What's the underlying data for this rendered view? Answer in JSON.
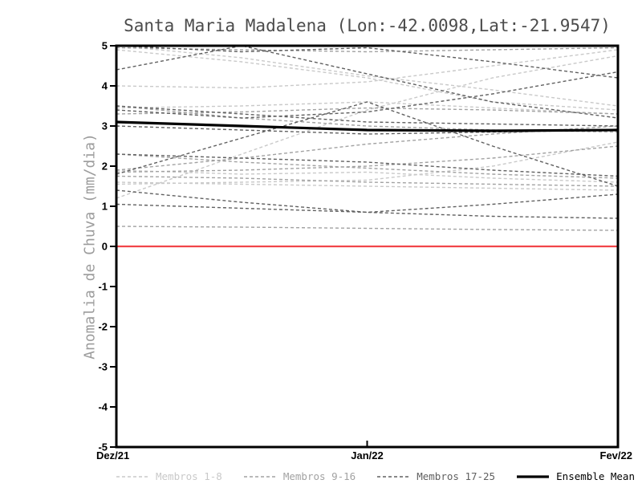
{
  "page": {
    "background": "#ffffff"
  },
  "chart_data": {
    "type": "line",
    "title": "Santa Maria Madalena (Lon:-42.0098,Lat:-21.9547)",
    "ylabel": "Anomalia de Chuva (mm/dia)",
    "xlabel": "",
    "ylim": [
      -5,
      5
    ],
    "yticks": [
      5,
      4,
      3,
      2,
      1,
      0,
      -1,
      -2,
      -3,
      -4,
      -5
    ],
    "x_tick_labels": [
      "Dez/21",
      "Jan/22",
      "Fev/22"
    ],
    "x_positions": [
      0,
      0.25,
      0.5,
      0.75,
      1
    ],
    "grid": false,
    "legend_position": "bottom",
    "zero_line": {
      "value": 0,
      "color": "#f14549"
    },
    "frame_color": "#000000",
    "groups": [
      {
        "name": "Membros 1-8",
        "color": "#c9c9c9",
        "style": "dashed",
        "series": [
          [
            5.0,
            4.7,
            4.25,
            3.9,
            3.5
          ],
          [
            4.0,
            3.95,
            4.1,
            4.5,
            4.9
          ],
          [
            3.45,
            3.5,
            3.6,
            3.45,
            3.3
          ],
          [
            1.9,
            1.8,
            1.85,
            1.7,
            1.6
          ],
          [
            1.55,
            1.6,
            1.65,
            2.0,
            2.6
          ],
          [
            1.2,
            2.3,
            3.4,
            4.2,
            4.75
          ],
          [
            4.9,
            4.6,
            4.2,
            3.6,
            3.4
          ],
          [
            1.6,
            1.55,
            1.5,
            1.45,
            1.4
          ]
        ]
      },
      {
        "name": "Membros 9-16",
        "color": "#a2a2a2",
        "style": "dashed",
        "series": [
          [
            3.5,
            3.2,
            3.0,
            2.9,
            2.85
          ],
          [
            3.3,
            3.35,
            3.45,
            3.4,
            3.3
          ],
          [
            1.85,
            1.9,
            2.0,
            2.2,
            2.5
          ],
          [
            1.75,
            1.7,
            1.6,
            1.55,
            1.5
          ],
          [
            2.3,
            2.1,
            1.95,
            1.8,
            1.7
          ],
          [
            0.5,
            0.48,
            0.45,
            0.42,
            0.4
          ],
          [
            4.95,
            4.9,
            4.85,
            4.9,
            4.95
          ],
          [
            1.9,
            2.2,
            2.55,
            2.8,
            3.0
          ]
        ]
      },
      {
        "name": "Membros 17-25",
        "color": "#606060",
        "style": "dashed",
        "series": [
          [
            4.4,
            5.0,
            4.3,
            3.6,
            3.2
          ],
          [
            3.4,
            3.2,
            3.35,
            3.8,
            4.35
          ],
          [
            3.5,
            3.3,
            3.1,
            3.05,
            3.0
          ],
          [
            2.3,
            2.2,
            2.1,
            1.9,
            1.75
          ],
          [
            1.8,
            2.7,
            3.6,
            2.5,
            1.5
          ],
          [
            1.05,
            0.95,
            0.85,
            1.05,
            1.3
          ],
          [
            1.4,
            1.1,
            0.85,
            0.75,
            0.7
          ],
          [
            3.0,
            2.9,
            2.8,
            2.85,
            2.9
          ],
          [
            5.0,
            4.85,
            4.95,
            4.6,
            4.2
          ]
        ]
      }
    ],
    "ensemble_mean": {
      "name": "Ensemble Mean",
      "color": "#000000",
      "style": "solid",
      "values": [
        3.1,
        3.0,
        2.9,
        2.88,
        2.9
      ]
    }
  }
}
